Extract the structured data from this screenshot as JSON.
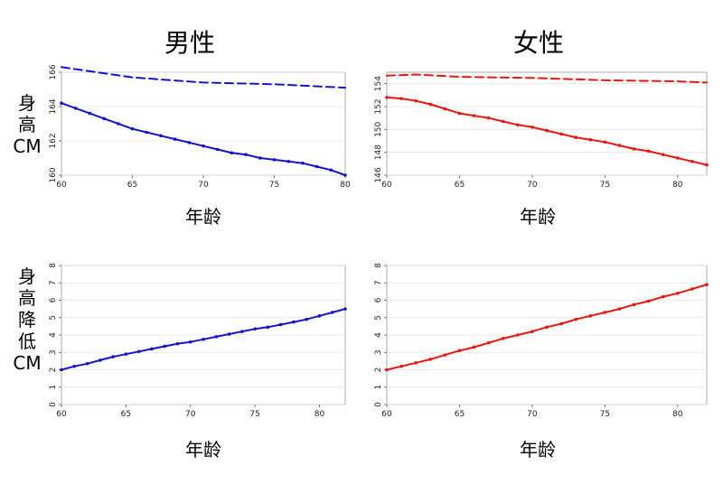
{
  "titles": {
    "male": "男性",
    "female": "女性"
  },
  "xlabel": "年龄",
  "ylabels": {
    "height": [
      "身",
      "高",
      "CM"
    ],
    "loss": [
      "身",
      "高",
      "降",
      "低",
      "CM"
    ]
  },
  "colors": {
    "male": "#1414c8",
    "female": "#e8160c"
  },
  "chart_data": [
    {
      "type": "line",
      "panel": "male-height",
      "xlim": [
        60,
        80
      ],
      "ylim": [
        160,
        166
      ],
      "xticks": [
        60,
        65,
        70,
        75,
        80
      ],
      "yticks": [
        160,
        162,
        164,
        166
      ],
      "series": [
        {
          "style": "dashed",
          "x": [
            60,
            65,
            70,
            75,
            80
          ],
          "y": [
            166.3,
            165.7,
            165.4,
            165.3,
            165.1
          ]
        },
        {
          "style": "solid",
          "x": [
            60,
            61,
            62,
            63,
            64,
            65,
            66,
            67,
            68,
            69,
            70,
            71,
            72,
            73,
            74,
            75,
            76,
            77,
            78,
            79,
            80
          ],
          "y": [
            164.2,
            163.9,
            163.6,
            163.3,
            163.0,
            162.7,
            162.5,
            162.3,
            162.1,
            161.9,
            161.7,
            161.5,
            161.3,
            161.2,
            161.0,
            160.9,
            160.8,
            160.7,
            160.5,
            160.3,
            160.0
          ]
        }
      ]
    },
    {
      "type": "line",
      "panel": "female-height",
      "xlim": [
        60,
        82
      ],
      "ylim": [
        146,
        155
      ],
      "xticks": [
        60,
        65,
        70,
        75,
        80
      ],
      "yticks": [
        146,
        148,
        150,
        152,
        154
      ],
      "series": [
        {
          "style": "dashed",
          "x": [
            60,
            62,
            65,
            70,
            75,
            80,
            82
          ],
          "y": [
            154.7,
            154.8,
            154.6,
            154.5,
            154.3,
            154.2,
            154.1
          ]
        },
        {
          "style": "solid",
          "x": [
            60,
            61,
            62,
            63,
            64,
            65,
            66,
            67,
            68,
            69,
            70,
            71,
            72,
            73,
            74,
            75,
            76,
            77,
            78,
            79,
            80,
            81,
            82
          ],
          "y": [
            152.8,
            152.7,
            152.5,
            152.2,
            151.8,
            151.4,
            151.2,
            151.0,
            150.7,
            150.4,
            150.2,
            149.9,
            149.6,
            149.3,
            149.1,
            148.9,
            148.6,
            148.3,
            148.1,
            147.8,
            147.5,
            147.2,
            146.9
          ]
        }
      ]
    },
    {
      "type": "line",
      "panel": "male-loss",
      "xlim": [
        60,
        82
      ],
      "ylim": [
        0,
        8
      ],
      "xticks": [
        60,
        65,
        70,
        75,
        80
      ],
      "yticks": [
        0,
        1,
        2,
        3,
        4,
        5,
        6,
        7,
        8
      ],
      "series": [
        {
          "style": "solid",
          "x": [
            60,
            61,
            62,
            63,
            64,
            65,
            66,
            67,
            68,
            69,
            70,
            71,
            72,
            73,
            74,
            75,
            76,
            77,
            78,
            79,
            80,
            81,
            82
          ],
          "y": [
            2.0,
            2.2,
            2.35,
            2.55,
            2.75,
            2.9,
            3.05,
            3.2,
            3.35,
            3.5,
            3.6,
            3.75,
            3.9,
            4.05,
            4.2,
            4.35,
            4.45,
            4.6,
            4.75,
            4.9,
            5.1,
            5.3,
            5.5
          ]
        }
      ]
    },
    {
      "type": "line",
      "panel": "female-loss",
      "xlim": [
        60,
        82
      ],
      "ylim": [
        0,
        8
      ],
      "xticks": [
        60,
        65,
        70,
        75,
        80
      ],
      "yticks": [
        0,
        1,
        2,
        3,
        4,
        5,
        6,
        7,
        8
      ],
      "series": [
        {
          "style": "solid",
          "x": [
            60,
            61,
            62,
            63,
            64,
            65,
            66,
            67,
            68,
            69,
            70,
            71,
            72,
            73,
            74,
            75,
            76,
            77,
            78,
            79,
            80,
            81,
            82
          ],
          "y": [
            2.0,
            2.2,
            2.4,
            2.6,
            2.85,
            3.1,
            3.3,
            3.55,
            3.8,
            4.0,
            4.2,
            4.45,
            4.65,
            4.9,
            5.1,
            5.3,
            5.5,
            5.75,
            5.95,
            6.2,
            6.4,
            6.65,
            6.9
          ]
        }
      ]
    }
  ]
}
